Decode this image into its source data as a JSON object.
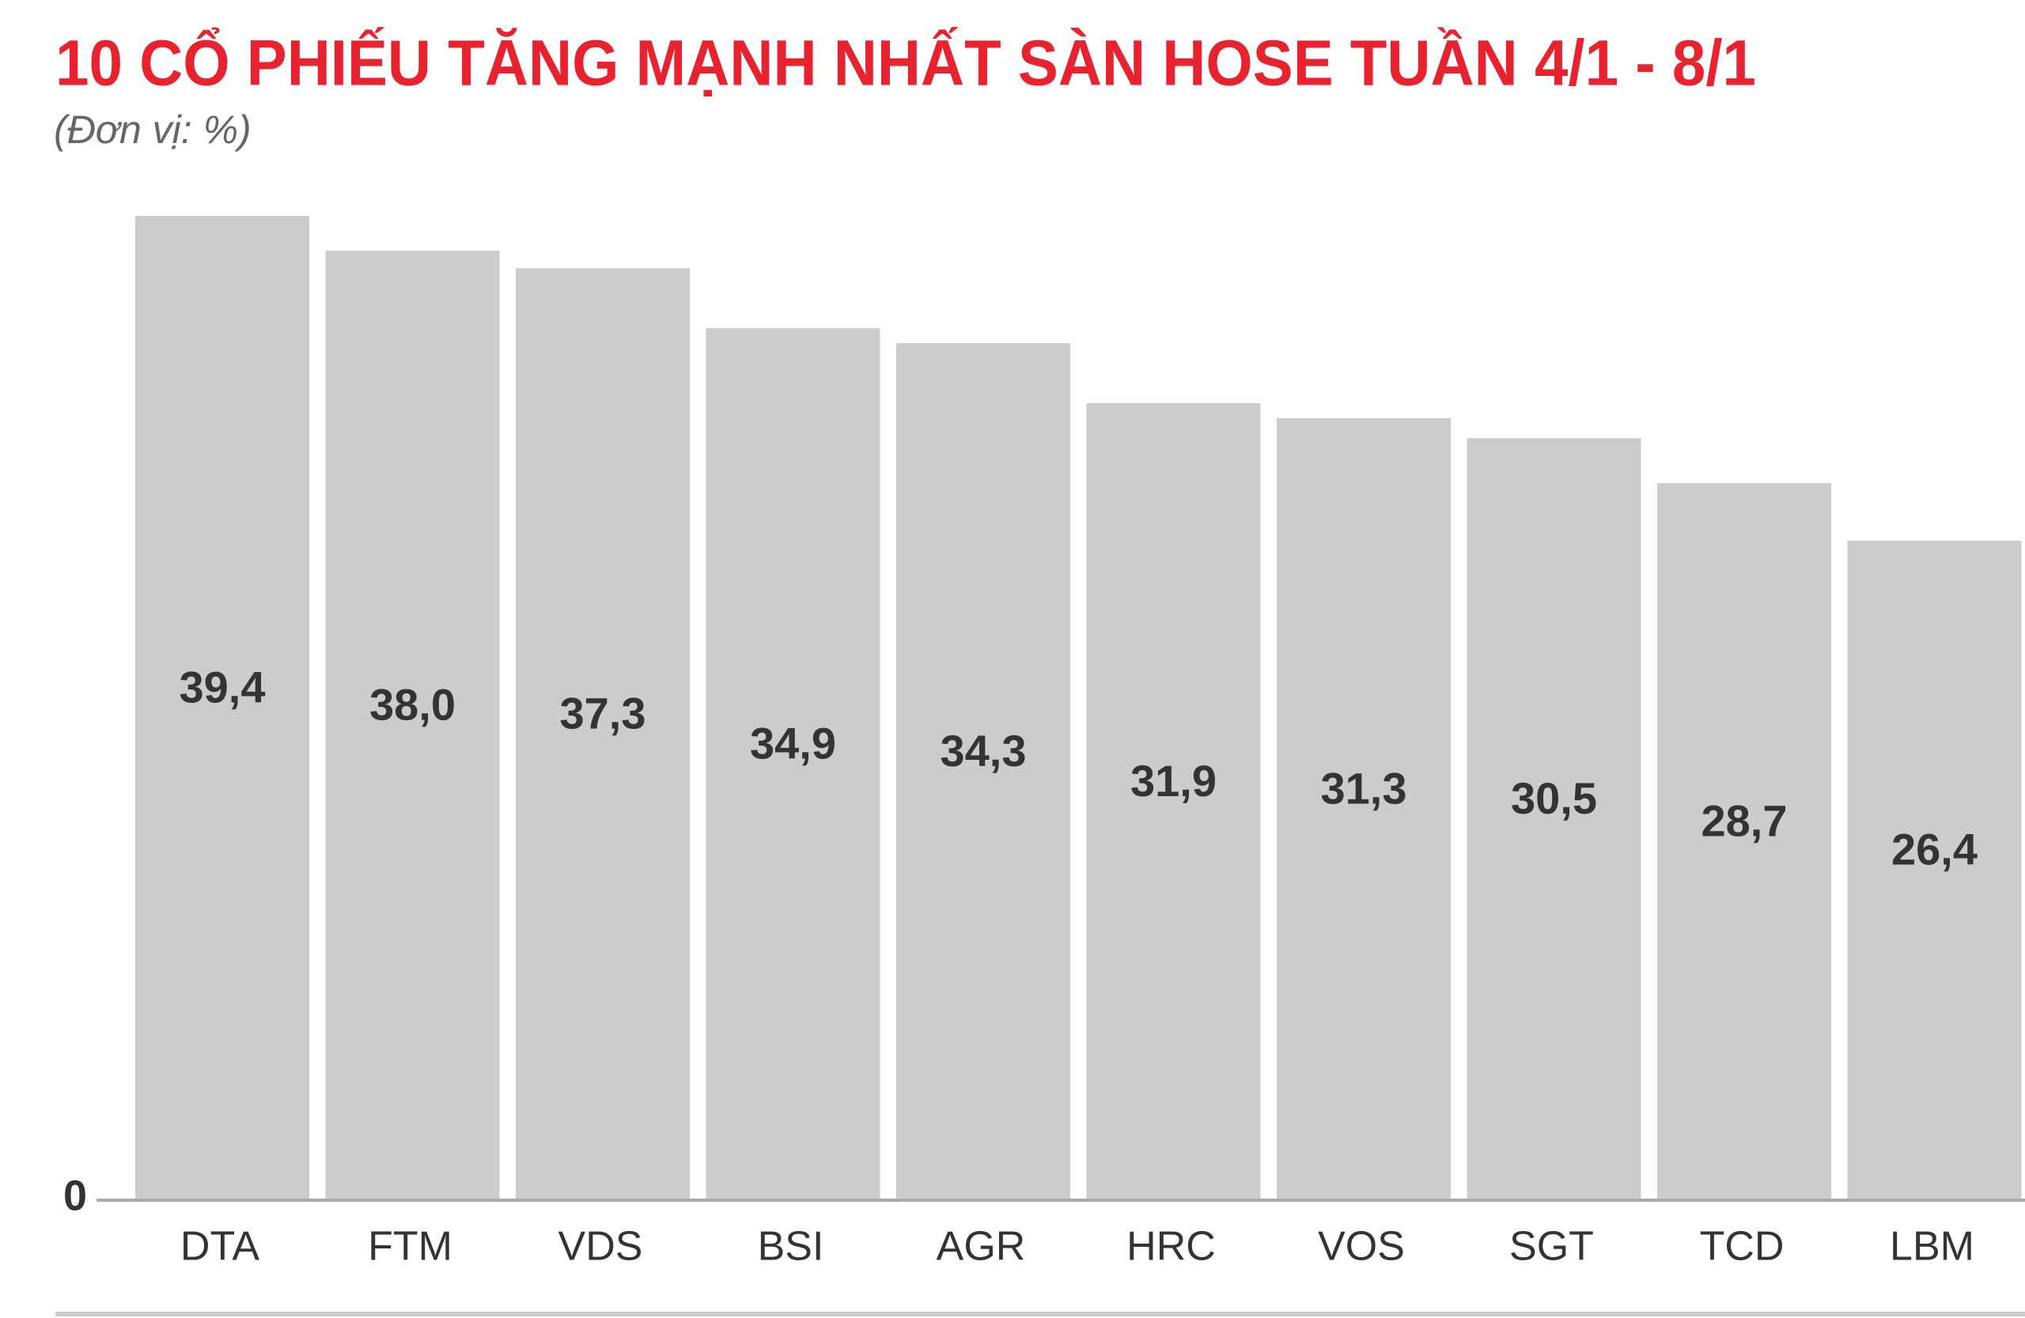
{
  "chart_data": {
    "type": "bar",
    "title": "10 CỔ PHIẾU TĂNG MẠNH NHẤT SÀN HOSE TUẦN 4/1 - 8/1",
    "subtitle": "(Đơn vị: %)",
    "categories": [
      "DTA",
      "FTM",
      "VDS",
      "BSI",
      "AGR",
      "HRC",
      "VOS",
      "SGT",
      "TCD",
      "LBM"
    ],
    "values": [
      39.4,
      38.0,
      37.3,
      34.9,
      34.3,
      31.9,
      31.3,
      30.5,
      28.7,
      26.4
    ],
    "value_labels": [
      "39,4",
      "38,0",
      "37,3",
      "34,9",
      "34,3",
      "31,9",
      "31,3",
      "30,5",
      "28,7",
      "26,4"
    ],
    "color": "#cccccc",
    "ylim": [
      0,
      40
    ],
    "yticks": [
      0
    ]
  }
}
